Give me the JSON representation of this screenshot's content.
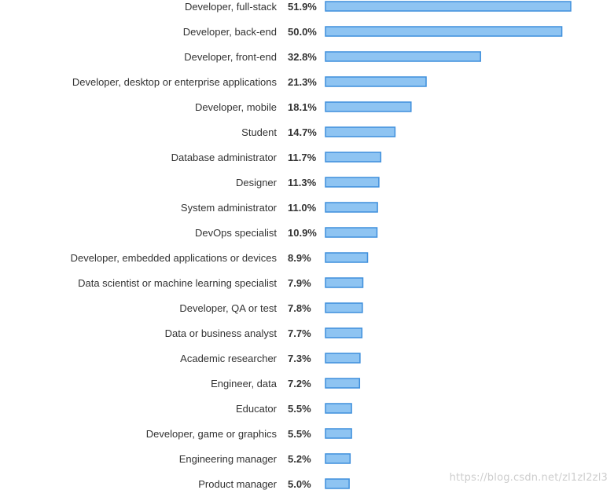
{
  "chart_data": {
    "type": "bar",
    "orientation": "horizontal",
    "categories": [
      "Developer, full-stack",
      "Developer, back-end",
      "Developer, front-end",
      "Developer, desktop or enterprise applications",
      "Developer, mobile",
      "Student",
      "Database administrator",
      "Designer",
      "System administrator",
      "DevOps specialist",
      "Developer, embedded applications or devices",
      "Data scientist or machine learning specialist",
      "Developer, QA or test",
      "Data or business analyst",
      "Academic researcher",
      "Engineer, data",
      "Educator",
      "Developer, game or graphics",
      "Engineering manager",
      "Product manager"
    ],
    "values": [
      51.9,
      50.0,
      32.8,
      21.3,
      18.1,
      14.7,
      11.7,
      11.3,
      11.0,
      10.9,
      8.9,
      7.9,
      7.8,
      7.7,
      7.3,
      7.2,
      5.5,
      5.5,
      5.2,
      5.0
    ],
    "value_labels": [
      "51.9%",
      "50.0%",
      "32.8%",
      "21.3%",
      "18.1%",
      "14.7%",
      "11.7%",
      "11.3%",
      "11.0%",
      "10.9%",
      "8.9%",
      "7.9%",
      "7.8%",
      "7.7%",
      "7.3%",
      "7.2%",
      "5.5%",
      "5.5%",
      "5.2%",
      "5.0%"
    ],
    "unit": "%",
    "title": "",
    "xlabel": "",
    "ylabel": "",
    "xlim": [
      0,
      51.9
    ],
    "grid": false,
    "legend": "none",
    "colors": {
      "bar_fill": "#8ec4f2",
      "bar_stroke": "#3f8fdc",
      "text": "#333333"
    }
  },
  "watermark": "https://blog.csdn.net/zl1zl2zl3"
}
